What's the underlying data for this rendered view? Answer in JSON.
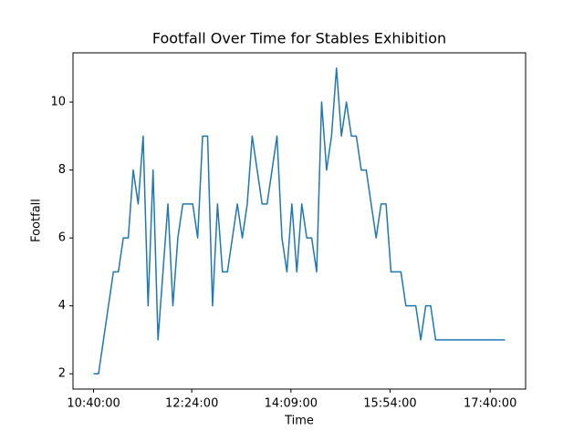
{
  "chart_data": {
    "type": "line",
    "title": "Footfall Over Time for Stables Exhibition",
    "x_label": "Time",
    "y_label": "Footfall",
    "x": [
      "10:40:00",
      "10:45:15",
      "10:50:30",
      "10:55:45",
      "11:01:00",
      "11:06:15",
      "11:11:30",
      "11:16:45",
      "11:22:00",
      "11:27:15",
      "11:32:30",
      "11:37:45",
      "11:43:00",
      "11:48:15",
      "11:53:30",
      "11:58:45",
      "12:04:00",
      "12:09:15",
      "12:14:30",
      "12:19:45",
      "12:25:00",
      "12:30:15",
      "12:35:30",
      "12:40:45",
      "12:46:00",
      "12:51:15",
      "12:56:30",
      "13:01:45",
      "13:07:00",
      "13:12:15",
      "13:17:30",
      "13:22:45",
      "13:28:00",
      "13:33:15",
      "13:38:30",
      "13:43:45",
      "13:49:00",
      "13:54:15",
      "13:59:30",
      "14:04:45",
      "14:10:00",
      "14:15:15",
      "14:20:30",
      "14:25:45",
      "14:31:00",
      "14:36:15",
      "14:41:30",
      "14:46:45",
      "14:52:00",
      "14:57:15",
      "15:02:30",
      "15:07:45",
      "15:13:00",
      "15:18:15",
      "15:23:30",
      "15:28:45",
      "15:34:00",
      "15:39:15",
      "15:44:30",
      "15:49:45",
      "15:55:00",
      "16:00:15",
      "16:05:30",
      "16:10:45",
      "16:16:00",
      "16:21:15",
      "16:26:30",
      "16:31:45",
      "16:37:00",
      "16:42:15",
      "16:47:30",
      "16:52:45",
      "16:58:00",
      "17:03:15",
      "17:08:30",
      "17:13:45",
      "17:19:00",
      "17:24:15",
      "17:29:30",
      "17:34:45",
      "17:40:00",
      "17:45:15",
      "17:50:30",
      "17:55:45"
    ],
    "series": [
      {
        "name": "Footfall",
        "color": "#1f77b4",
        "values": [
          2,
          2,
          3,
          4,
          5,
          5,
          6,
          6,
          8,
          7,
          9,
          4,
          8,
          3,
          5,
          7,
          4,
          6,
          7,
          7,
          7,
          6,
          9,
          9,
          4,
          7,
          5,
          5,
          6,
          7,
          6,
          7,
          9,
          8,
          7,
          7,
          8,
          9,
          6,
          5,
          7,
          5,
          7,
          6,
          6,
          5,
          10,
          8,
          9,
          11,
          9,
          10,
          9,
          9,
          8,
          8,
          7,
          6,
          7,
          7,
          5,
          5,
          5,
          4,
          4,
          4,
          3,
          4,
          4,
          3,
          3,
          3,
          3,
          3,
          3,
          3,
          3,
          3,
          3,
          3,
          3,
          3,
          3,
          3
        ]
      }
    ],
    "xlim": [
      "10:18:13",
      "18:17:32"
    ],
    "xticks": [
      "10:40:00",
      "12:24:00",
      "14:09:00",
      "15:54:00",
      "17:40:00"
    ],
    "ylim": [
      1.55,
      11.45
    ],
    "yticks": [
      2,
      4,
      6,
      8,
      10
    ],
    "grid": false
  }
}
